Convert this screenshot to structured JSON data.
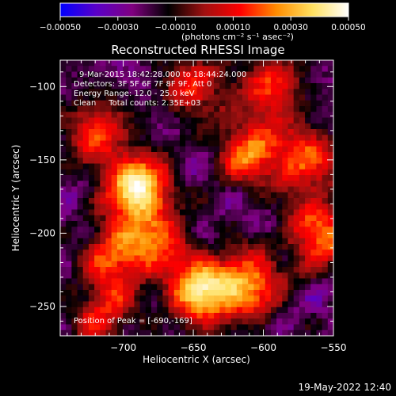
{
  "chart_data": {
    "type": "heatmap",
    "title": "Reconstructed RHESSI Image",
    "xlabel": "Heliocentric X (arcsec)",
    "ylabel": "Heliocentric Y (arcsec)",
    "xlim": [
      -745,
      -550
    ],
    "ylim": [
      -270,
      -82
    ],
    "xticks": [
      -700,
      -650,
      -600,
      -550
    ],
    "xtick_labels": [
      "−700",
      "−650",
      "−600",
      "−550"
    ],
    "yticks": [
      -100,
      -150,
      -200,
      -250
    ],
    "ytick_labels": [
      "−100",
      "−150",
      "−200",
      "−250"
    ],
    "colorbar": {
      "range": [
        -0.0005,
        0.0005
      ],
      "ticks": [
        -0.0005,
        -0.0003,
        -0.0001,
        0.0001,
        0.0003,
        0.0005
      ],
      "tick_labels": [
        "−0.00050",
        "−0.00030",
        "−0.00010",
        "0.00010",
        "0.00030",
        "0.00050"
      ],
      "unit_label": "(photons cm⁻² s⁻¹ asec⁻²)",
      "colors": [
        "#0000ff",
        "#5a00c8",
        "#800080",
        "#000000",
        "#a01010",
        "#ff0000",
        "#ff8c00",
        "#ffe060",
        "#ffffff"
      ]
    },
    "peak": {
      "x": -690,
      "y": -169
    },
    "bright_regions": [
      {
        "x": -690,
        "y": -169,
        "level": 1.0
      },
      {
        "x": -645,
        "y": -240,
        "level": 0.9
      },
      {
        "x": -610,
        "y": -235,
        "level": 0.75
      },
      {
        "x": -560,
        "y": -200,
        "level": 0.7
      },
      {
        "x": -570,
        "y": -150,
        "level": 0.6
      },
      {
        "x": -610,
        "y": -145,
        "level": 0.65
      },
      {
        "x": -705,
        "y": -215,
        "level": 0.6
      },
      {
        "x": -720,
        "y": -130,
        "level": 0.55
      },
      {
        "x": -650,
        "y": -100,
        "level": 0.5
      },
      {
        "x": -595,
        "y": -100,
        "level": 0.55
      },
      {
        "x": -715,
        "y": -255,
        "level": 0.5
      },
      {
        "x": -675,
        "y": -205,
        "level": 0.5
      }
    ],
    "annotations": [
      "9-Mar-2015 18:42:28.000 to 18:44:24.000",
      "Detectors: 3F 5F 6F 7F 8F 9F, Att 0",
      "Energy Range: 12.0 - 25.0 keV",
      "Clean     Total counts: 2.35E+03",
      "Position of Peak = [-690,-169]"
    ]
  },
  "timestamp": "19-May-2022 12:40"
}
